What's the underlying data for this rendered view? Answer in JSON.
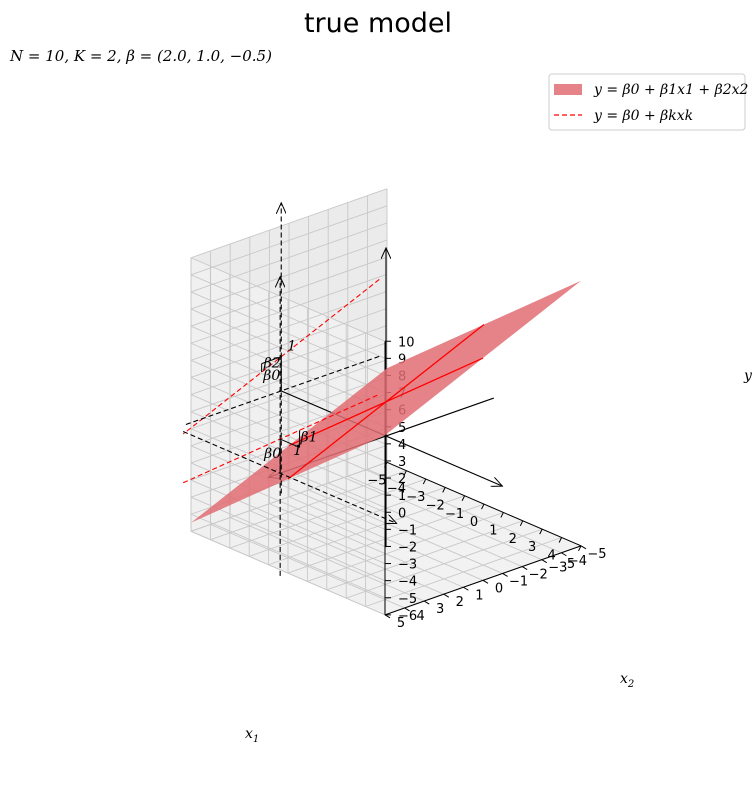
{
  "title": "true model",
  "subtitle": "N = 10, K = 2, β = (2.0, 1.0, −0.5)",
  "legend": {
    "plane_label": "y = β0 + β1x1 + β2x2",
    "line_label": "y = β0 + βkxk"
  },
  "annotations": {
    "beta0": "β0",
    "beta1": "β1",
    "beta2": "β2",
    "one": "1"
  },
  "chart_data": {
    "type": "surface3d",
    "title": "true model",
    "beta": [
      2.0,
      1.0,
      -0.5
    ],
    "N": 10,
    "K": 2,
    "xlabel": "x1",
    "ylabel": "x2",
    "zlabel": "y",
    "xlim": [
      -5,
      5
    ],
    "ylim": [
      -5,
      5
    ],
    "zlim": [
      -6,
      10
    ],
    "x_ticks": [
      -5,
      -4,
      -3,
      -2,
      -1,
      0,
      1,
      2,
      3,
      4,
      5
    ],
    "y_ticks": [
      -5,
      -4,
      -3,
      -2,
      -1,
      0,
      1,
      2,
      3,
      4,
      5
    ],
    "z_ticks": [
      -6,
      -5,
      -4,
      -3,
      -2,
      -1,
      0,
      1,
      2,
      3,
      4,
      5,
      6,
      7,
      8,
      9,
      10
    ],
    "plane_color": "#e06d73",
    "line_color": "#ff0000",
    "grid": true,
    "legend_position": "top-right"
  }
}
